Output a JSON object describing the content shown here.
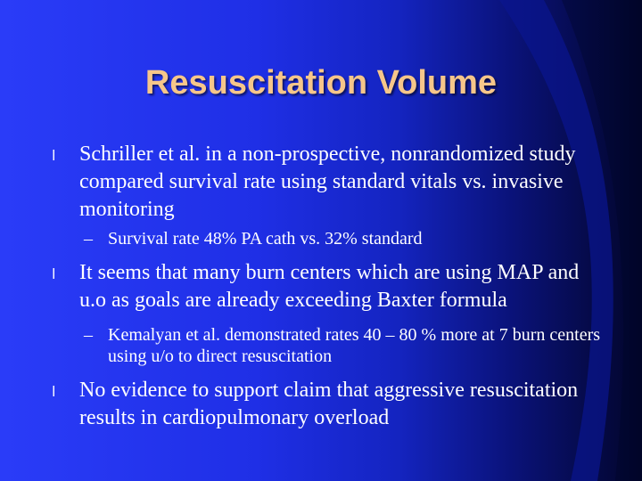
{
  "slide": {
    "title": "Resuscitation Volume",
    "bullet_symbol": "l",
    "dash_symbol": "–",
    "points": [
      {
        "text": "Schriller et al. in a non-prospective, nonrandomized study compared survival rate using standard vitals vs. invasive monitoring",
        "sub": "Survival rate 48% PA cath vs. 32% standard"
      },
      {
        "text": "It seems that many burn centers which are using MAP and u.o as goals are already exceeding Baxter formula",
        "sub": "Kemalyan et al. demonstrated rates 40 – 80 % more at 7 burn centers using u/o to direct resuscitation"
      },
      {
        "text": "No evidence to support claim that aggressive resuscitation results in cardiopulmonary overload"
      }
    ]
  }
}
